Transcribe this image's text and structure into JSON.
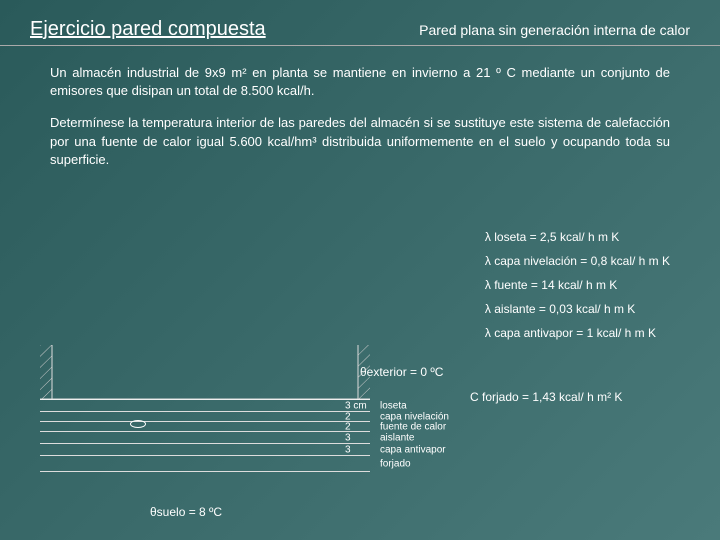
{
  "header": {
    "left": "Ejercicio pared compuesta",
    "right": "Pared plana sin generación interna de calor"
  },
  "paragraphs": {
    "p1": "Un almacén industrial de 9x9 m² en planta se mantiene en invierno a 21 º C mediante un conjunto de emisores que disipan un total de 8.500 kcal/h.",
    "p2": "Determínese la temperatura interior de las paredes del almacén si se sustituye este sistema de calefacción por una fuente de calor igual 5.600 kcal/hm³ distribuida uniformemente en el suelo y ocupando toda su superficie."
  },
  "lambdas": {
    "loseta": "λ loseta = 2,5 kcal/ h m K",
    "nivelacion": "λ capa nivelación = 0,8 kcal/ h m K",
    "fuente": "λ fuente = 14 kcal/ h m K",
    "aislante": "λ aislante = 0,03 kcal/ h m K",
    "antivapor": "λ capa antivapor = 1 kcal/ h m K",
    "forjado": "C forjado = 1,43 kcal/ h m² K"
  },
  "theta": {
    "exterior": "θexterior = 0 ºC",
    "suelo": "θsuelo = 8 ºC"
  },
  "layers": [
    {
      "thickness": "3 cm",
      "name": "loseta",
      "h": 12
    },
    {
      "thickness": "2",
      "name": "capa nivelación",
      "h": 10
    },
    {
      "thickness": "2",
      "name": "fuente de calor",
      "h": 10
    },
    {
      "thickness": "3",
      "name": "aislante",
      "h": 12
    },
    {
      "thickness": "3",
      "name": "capa antivapor",
      "h": 12
    },
    {
      "thickness": "",
      "name": "forjado",
      "h": 16
    }
  ],
  "colors": {
    "line": "#dddddd",
    "text": "#ffffff"
  }
}
